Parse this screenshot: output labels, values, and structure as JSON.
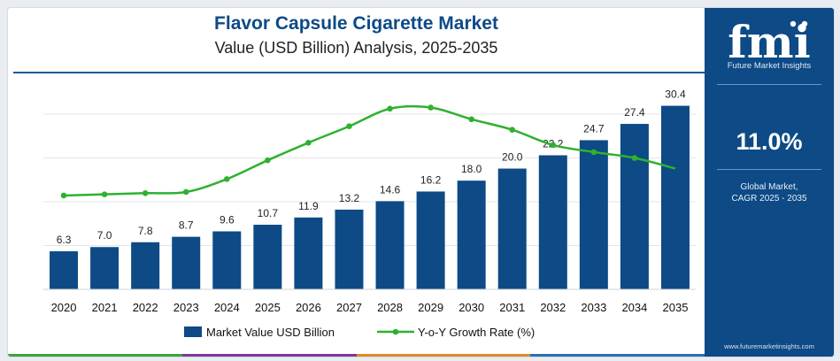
{
  "header": {
    "title": "Flavor Capsule Cigarette Market",
    "subtitle": "Value (USD Billion) Analysis, 2025-2035"
  },
  "sidebar": {
    "logo_text": "fmi",
    "brand": "Future Market Insights",
    "cagr": "11.0%",
    "cagr_label_line1": "Global Market,",
    "cagr_label_line2": "CAGR 2025 - 2035",
    "url": "www.futuremarketinsights.com"
  },
  "colors": {
    "bar": "#0d4a86",
    "line": "#2fb12f",
    "sidebar": "#0d4a86",
    "bottom_bar": [
      "#3da33d",
      "#7c3a96",
      "#e08a2a",
      "#2c6eb3"
    ]
  },
  "chart_data": {
    "type": "bar",
    "categories": [
      "2020",
      "2021",
      "2022",
      "2023",
      "2024",
      "2025",
      "2026",
      "2027",
      "2028",
      "2029",
      "2030",
      "2031",
      "2032",
      "2033",
      "2034",
      "2035"
    ],
    "series": [
      {
        "name": "Market Value USD Billion",
        "type": "bar",
        "values": [
          6.3,
          7.0,
          7.8,
          8.7,
          9.6,
          10.7,
          11.9,
          13.2,
          14.6,
          16.2,
          18.0,
          20.0,
          22.2,
          24.7,
          27.4,
          30.4
        ]
      },
      {
        "name": "Y-o-Y Growth Rate (%)",
        "type": "line",
        "values": [
          8.0,
          8.1,
          8.2,
          8.3,
          9.4,
          11.0,
          12.5,
          13.9,
          15.4,
          15.5,
          14.5,
          13.6,
          12.3,
          11.7,
          11.2,
          10.3
        ]
      }
    ],
    "value_labels": [
      "6.3",
      "7.0",
      "7.8",
      "8.7",
      "9.6",
      "10.7",
      "11.9",
      "13.2",
      "14.6",
      "16.2",
      "18.0",
      "20.0",
      "22.2",
      "24.7",
      "27.4",
      "30.4"
    ],
    "ylim": [
      0,
      34
    ],
    "line_ylim": [
      0,
      17.5
    ],
    "grid": true,
    "legend_position": "bottom"
  }
}
